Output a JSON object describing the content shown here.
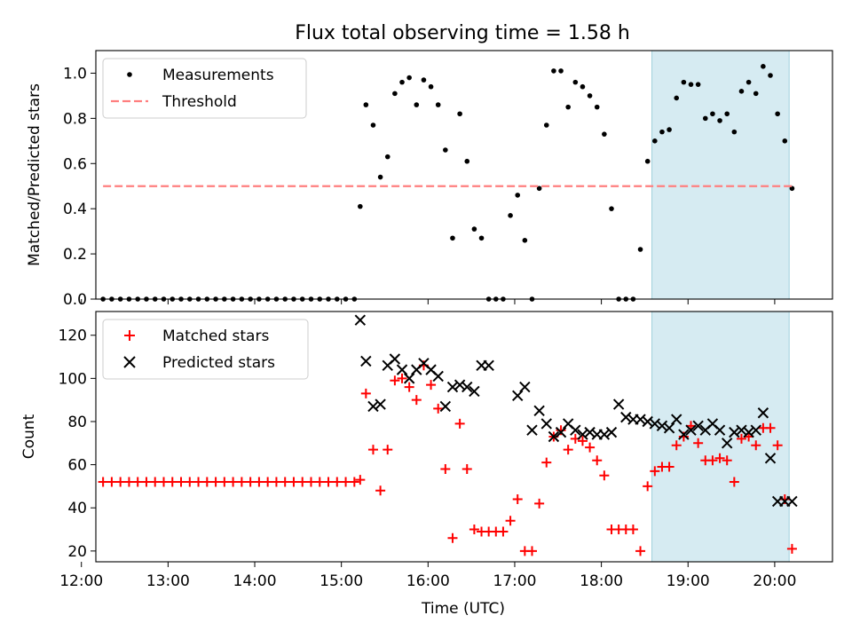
{
  "title": "Flux total observing time = 1.58 h",
  "chart_data": [
    {
      "type": "scatter",
      "ylabel": "Matched/Predicted stars",
      "xlabel": "",
      "ylim": [
        0,
        1.1
      ],
      "xlim": [
        "12:10",
        "20:40"
      ],
      "yticks": [
        0.0,
        0.2,
        0.4,
        0.6,
        0.8,
        1.0
      ],
      "ytick_labels": [
        "0.0",
        "0.2",
        "0.4",
        "0.6",
        "0.8",
        "1.0"
      ],
      "grid": false,
      "legend": "top-left",
      "highlight_span": [
        "18:35",
        "20:10"
      ],
      "series": [
        {
          "name": "Measurements",
          "marker": "dot",
          "color": "#000000",
          "x": [
            "12:15",
            "12:21",
            "12:27",
            "12:33",
            "12:39",
            "12:45",
            "12:51",
            "12:57",
            "13:03",
            "13:09",
            "13:15",
            "13:21",
            "13:27",
            "13:33",
            "13:39",
            "13:45",
            "13:51",
            "13:57",
            "14:03",
            "14:09",
            "14:15",
            "14:21",
            "14:27",
            "14:33",
            "14:39",
            "14:45",
            "14:51",
            "14:57",
            "15:03",
            "15:09",
            "15:13",
            "15:17",
            "15:22",
            "15:27",
            "15:32",
            "15:37",
            "15:42",
            "15:47",
            "15:52",
            "15:57",
            "16:02",
            "16:07",
            "16:12",
            "16:17",
            "16:22",
            "16:27",
            "16:32",
            "16:37",
            "16:42",
            "16:47",
            "16:52",
            "16:57",
            "17:02",
            "17:07",
            "17:12",
            "17:17",
            "17:22",
            "17:27",
            "17:32",
            "17:37",
            "17:42",
            "17:47",
            "17:52",
            "17:57",
            "18:02",
            "18:07",
            "18:12",
            "18:17",
            "18:22",
            "18:27",
            "18:32",
            "18:37",
            "18:42",
            "18:47",
            "18:52",
            "18:57",
            "19:02",
            "19:07",
            "19:12",
            "19:17",
            "19:22",
            "19:27",
            "19:32",
            "19:37",
            "19:42",
            "19:47",
            "19:52",
            "19:57",
            "20:02",
            "20:07",
            "20:12"
          ],
          "y": [
            0,
            0,
            0,
            0,
            0,
            0,
            0,
            0,
            0,
            0,
            0,
            0,
            0,
            0,
            0,
            0,
            0,
            0,
            0,
            0,
            0,
            0,
            0,
            0,
            0,
            0,
            0,
            0,
            0,
            0,
            0.41,
            0.86,
            0.77,
            0.54,
            0.63,
            0.91,
            0.96,
            0.98,
            0.86,
            0.97,
            0.94,
            0.86,
            0.66,
            0.27,
            0.82,
            0.61,
            0.31,
            0.27,
            0,
            0,
            0,
            0.37,
            0.46,
            0.26,
            0,
            0.49,
            0.77,
            1.01,
            1.01,
            0.85,
            0.96,
            0.94,
            0.9,
            0.85,
            0.73,
            0.4,
            0,
            0,
            0,
            0.22,
            0.61,
            0.7,
            0.74,
            0.75,
            0.89,
            0.96,
            0.95,
            0.95,
            0.8,
            0.82,
            0.79,
            0.82,
            0.74,
            0.92,
            0.96,
            0.91,
            1.03,
            0.99,
            0.82,
            0.7,
            0.49
          ]
        },
        {
          "name": "Threshold",
          "marker": "dashed-line",
          "color": "#ff7f7f",
          "x": [
            "12:15",
            "20:12"
          ],
          "y": [
            0.5,
            0.5
          ]
        }
      ]
    },
    {
      "type": "scatter",
      "ylabel": "Count",
      "xlabel": "Time (UTC)",
      "ylim": [
        15,
        131
      ],
      "xlim": [
        "12:10",
        "20:40"
      ],
      "yticks": [
        20,
        40,
        60,
        80,
        100,
        120
      ],
      "ytick_labels": [
        "20",
        "40",
        "60",
        "80",
        "100",
        "120"
      ],
      "xticks": [
        "12:00",
        "13:00",
        "14:00",
        "15:00",
        "16:00",
        "17:00",
        "18:00",
        "19:00",
        "20:00"
      ],
      "grid": false,
      "legend": "top-left",
      "highlight_span": [
        "18:35",
        "20:10"
      ],
      "series": [
        {
          "name": "Matched stars",
          "marker": "plus",
          "color": "#ff0000",
          "x": [
            "12:15",
            "12:21",
            "12:27",
            "12:33",
            "12:39",
            "12:45",
            "12:51",
            "12:57",
            "13:03",
            "13:09",
            "13:15",
            "13:21",
            "13:27",
            "13:33",
            "13:39",
            "13:45",
            "13:51",
            "13:57",
            "14:03",
            "14:09",
            "14:15",
            "14:21",
            "14:27",
            "14:33",
            "14:39",
            "14:45",
            "14:51",
            "14:57",
            "15:03",
            "15:09",
            "15:13",
            "15:17",
            "15:22",
            "15:27",
            "15:32",
            "15:37",
            "15:42",
            "15:47",
            "15:52",
            "15:57",
            "16:02",
            "16:07",
            "16:12",
            "16:17",
            "16:22",
            "16:27",
            "16:32",
            "16:37",
            "16:42",
            "16:47",
            "16:52",
            "16:57",
            "17:02",
            "17:07",
            "17:12",
            "17:17",
            "17:22",
            "17:27",
            "17:32",
            "17:37",
            "17:42",
            "17:47",
            "17:52",
            "17:57",
            "18:02",
            "18:07",
            "18:12",
            "18:17",
            "18:22",
            "18:27",
            "18:32",
            "18:37",
            "18:42",
            "18:47",
            "18:52",
            "18:57",
            "19:02",
            "19:07",
            "19:12",
            "19:17",
            "19:22",
            "19:27",
            "19:32",
            "19:37",
            "19:42",
            "19:47",
            "19:52",
            "19:57",
            "20:02",
            "20:07",
            "20:12"
          ],
          "y": [
            52,
            52,
            52,
            52,
            52,
            52,
            52,
            52,
            52,
            52,
            52,
            52,
            52,
            52,
            52,
            52,
            52,
            52,
            52,
            52,
            52,
            52,
            52,
            52,
            52,
            52,
            52,
            52,
            52,
            52,
            53,
            93,
            67,
            48,
            67,
            99,
            100,
            96,
            90,
            106,
            97,
            86,
            58,
            26,
            79,
            58,
            30,
            29,
            29,
            29,
            29,
            34,
            44,
            20,
            20,
            42,
            61,
            73,
            76,
            67,
            72,
            71,
            68,
            62,
            55,
            30,
            30,
            30,
            30,
            20,
            50,
            57,
            59,
            59,
            69,
            73,
            78,
            70,
            62,
            62,
            63,
            62,
            52,
            72,
            73,
            69,
            77,
            77,
            69,
            44,
            21
          ]
        },
        {
          "name": "Predicted stars",
          "marker": "x",
          "color": "#000000",
          "x": [
            "15:13",
            "15:17",
            "15:22",
            "15:27",
            "15:32",
            "15:37",
            "15:42",
            "15:47",
            "15:52",
            "15:57",
            "16:02",
            "16:07",
            "16:12",
            "16:17",
            "16:22",
            "16:27",
            "16:32",
            "16:37",
            "16:42",
            "17:02",
            "17:07",
            "17:12",
            "17:17",
            "17:22",
            "17:27",
            "17:32",
            "17:37",
            "17:42",
            "17:47",
            "17:52",
            "17:57",
            "18:02",
            "18:07",
            "18:12",
            "18:17",
            "18:22",
            "18:27",
            "18:32",
            "18:37",
            "18:42",
            "18:47",
            "18:52",
            "18:57",
            "19:02",
            "19:07",
            "19:12",
            "19:17",
            "19:22",
            "19:27",
            "19:32",
            "19:37",
            "19:42",
            "19:47",
            "19:52",
            "19:57",
            "20:02",
            "20:07",
            "20:12"
          ],
          "y": [
            127,
            108,
            87,
            88,
            106,
            109,
            104,
            100,
            104,
            107,
            104,
            101,
            87,
            96,
            97,
            96,
            94,
            106,
            106,
            92,
            96,
            76,
            85,
            79,
            73,
            75,
            79,
            76,
            74,
            75,
            74,
            74,
            75,
            88,
            82,
            81,
            81,
            80,
            79,
            78,
            77,
            81,
            74,
            76,
            78,
            76,
            79,
            76,
            70,
            75,
            76,
            75,
            76,
            84,
            63,
            43,
            43,
            43
          ]
        }
      ]
    }
  ]
}
